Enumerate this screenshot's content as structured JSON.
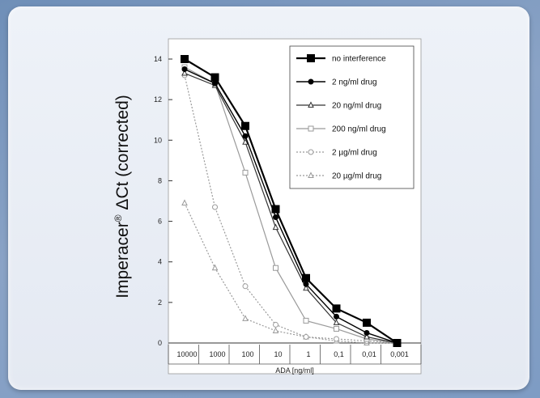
{
  "chart_data": {
    "type": "line",
    "xlabel": "ADA [ng/ml]",
    "ylabel_main": "Imperacer",
    "ylabel_sup": "®",
    "ylabel_rest": " ΔCt (corrected)",
    "categories": [
      "10000",
      "1000",
      "100",
      "10",
      "1",
      "0,1",
      "0,01",
      "0,001"
    ],
    "ylim": [
      0,
      15
    ],
    "yticks": [
      0,
      2,
      4,
      6,
      8,
      10,
      12,
      14
    ],
    "legend_position": "top-right",
    "series": [
      {
        "name": "no interference",
        "values": [
          14.0,
          13.1,
          10.7,
          6.6,
          3.2,
          1.7,
          1.0,
          0.0
        ],
        "color": "#000000",
        "marker": "square",
        "dashed": false,
        "width": 2.2,
        "filled": true
      },
      {
        "name": "2 ng/ml drug",
        "values": [
          13.5,
          12.8,
          10.2,
          6.2,
          2.9,
          1.3,
          0.5,
          0.0
        ],
        "color": "#000000",
        "marker": "circle",
        "dashed": false,
        "width": 1.4,
        "filled": true
      },
      {
        "name": "20 ng/ml drug",
        "values": [
          13.3,
          12.7,
          9.9,
          5.7,
          2.7,
          1.0,
          0.3,
          0.0
        ],
        "color": "#333333",
        "marker": "triangle",
        "dashed": false,
        "width": 1.2,
        "filled": false
      },
      {
        "name": "200 ng/ml drug",
        "values": [
          13.6,
          12.8,
          8.4,
          3.7,
          1.1,
          0.7,
          0.2,
          0.0
        ],
        "color": "#9a9a9a",
        "marker": "square",
        "dashed": false,
        "width": 1.2,
        "filled": false
      },
      {
        "name": "2 µg/ml drug",
        "values": [
          13.2,
          6.7,
          2.8,
          0.9,
          0.3,
          0.2,
          0.1,
          0.0
        ],
        "color": "#9a9a9a",
        "marker": "circle",
        "dashed": true,
        "width": 1.2,
        "filled": false
      },
      {
        "name": "20 µg/ml drug",
        "values": [
          6.9,
          3.7,
          1.2,
          0.6,
          0.3,
          0.1,
          0.0,
          0.0
        ],
        "color": "#9a9a9a",
        "marker": "triangle",
        "dashed": true,
        "width": 1.2,
        "filled": false
      }
    ]
  }
}
